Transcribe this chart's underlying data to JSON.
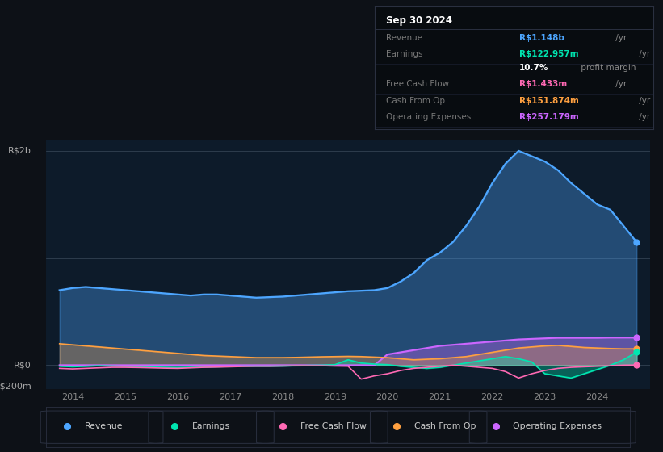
{
  "background_color": "#0d1117",
  "chart_bg_color": "#0d1b2a",
  "title_box": {
    "date": "Sep 30 2024",
    "rows": [
      {
        "label": "Revenue",
        "value": "R$1.148b",
        "unit": " /yr",
        "value_color": "#4da6ff",
        "unit_color": "#aaaaaa"
      },
      {
        "label": "Earnings",
        "value": "R$122.957m",
        "unit": " /yr",
        "value_color": "#00e5b0",
        "unit_color": "#aaaaaa"
      },
      {
        "label": "",
        "value": "10.7%",
        "unit": " profit margin",
        "value_color": "#ffffff",
        "unit_color": "#aaaaaa"
      },
      {
        "label": "Free Cash Flow",
        "value": "R$1.433m",
        "unit": " /yr",
        "value_color": "#ff69b4",
        "unit_color": "#aaaaaa"
      },
      {
        "label": "Cash From Op",
        "value": "R$151.874m",
        "unit": " /yr",
        "value_color": "#ffa040",
        "unit_color": "#aaaaaa"
      },
      {
        "label": "Operating Expenses",
        "value": "R$257.179m",
        "unit": " /yr",
        "value_color": "#cc66ff",
        "unit_color": "#aaaaaa"
      }
    ]
  },
  "ylabel_top": "R$2b",
  "ylabel_zero": "R$0",
  "ylabel_bottom": "-R$200m",
  "xlabel_ticks": [
    2014,
    2015,
    2016,
    2017,
    2018,
    2019,
    2020,
    2021,
    2022,
    2023,
    2024
  ],
  "xlabel_labels": [
    "2014",
    "2015",
    "2016",
    "2017",
    "2018",
    "2019",
    "2020",
    "2021",
    "2022",
    "2023",
    "2024"
  ],
  "ylim_min": -0.22,
  "ylim_max": 2.1,
  "xlim_min": 2013.5,
  "xlim_max": 2025.0,
  "legend": [
    {
      "label": "Revenue",
      "color": "#4da6ff"
    },
    {
      "label": "Earnings",
      "color": "#00e5b0"
    },
    {
      "label": "Free Cash Flow",
      "color": "#ff69b4"
    },
    {
      "label": "Cash From Op",
      "color": "#ffa040"
    },
    {
      "label": "Operating Expenses",
      "color": "#cc66ff"
    }
  ],
  "series": {
    "x": [
      2013.75,
      2014.0,
      2014.25,
      2014.5,
      2014.75,
      2015.0,
      2015.25,
      2015.5,
      2015.75,
      2016.0,
      2016.25,
      2016.5,
      2016.75,
      2017.0,
      2017.25,
      2017.5,
      2017.75,
      2018.0,
      2018.25,
      2018.5,
      2018.75,
      2019.0,
      2019.25,
      2019.5,
      2019.75,
      2020.0,
      2020.25,
      2020.5,
      2020.75,
      2021.0,
      2021.25,
      2021.5,
      2021.75,
      2022.0,
      2022.25,
      2022.5,
      2022.75,
      2023.0,
      2023.25,
      2023.5,
      2023.75,
      2024.0,
      2024.25,
      2024.5,
      2024.75
    ],
    "revenue_m": [
      700,
      720,
      730,
      720,
      710,
      700,
      690,
      680,
      670,
      660,
      650,
      660,
      660,
      650,
      640,
      630,
      635,
      640,
      650,
      660,
      670,
      680,
      690,
      695,
      700,
      720,
      780,
      860,
      980,
      1050,
      1150,
      1300,
      1480,
      1700,
      1880,
      2000,
      1950,
      1900,
      1820,
      1700,
      1600,
      1500,
      1450,
      1300,
      1148
    ],
    "earnings_m": [
      -10,
      -15,
      -10,
      -5,
      -8,
      -12,
      -15,
      -18,
      -20,
      -22,
      -20,
      -18,
      -15,
      -12,
      -10,
      -10,
      -10,
      -8,
      -5,
      -2,
      0,
      5,
      50,
      20,
      10,
      5,
      -10,
      -20,
      -30,
      -20,
      0,
      20,
      40,
      60,
      80,
      60,
      30,
      -80,
      -100,
      -120,
      -80,
      -40,
      0,
      50,
      123
    ],
    "free_cash_flow_m": [
      -30,
      -35,
      -30,
      -25,
      -20,
      -20,
      -22,
      -25,
      -28,
      -30,
      -25,
      -20,
      -18,
      -15,
      -12,
      -10,
      -10,
      -8,
      -5,
      -5,
      -5,
      -8,
      -10,
      -130,
      -100,
      -80,
      -50,
      -30,
      -20,
      -10,
      0,
      -10,
      -20,
      -30,
      -60,
      -120,
      -80,
      -50,
      -30,
      -20,
      -15,
      -10,
      -5,
      0,
      1.4
    ],
    "cash_from_op_m": [
      200,
      190,
      180,
      170,
      160,
      150,
      140,
      130,
      120,
      110,
      100,
      90,
      85,
      80,
      75,
      70,
      70,
      70,
      72,
      75,
      78,
      80,
      82,
      80,
      75,
      70,
      60,
      50,
      55,
      60,
      70,
      80,
      100,
      120,
      140,
      160,
      170,
      180,
      185,
      175,
      165,
      160,
      155,
      152,
      152
    ],
    "operating_expenses_m": [
      0,
      0,
      0,
      0,
      0,
      0,
      0,
      0,
      0,
      0,
      0,
      0,
      0,
      0,
      0,
      0,
      0,
      0,
      0,
      0,
      0,
      0,
      0,
      0,
      0,
      100,
      120,
      140,
      160,
      180,
      190,
      200,
      210,
      220,
      230,
      240,
      245,
      250,
      255,
      255,
      255,
      255,
      257,
      257,
      257
    ]
  }
}
